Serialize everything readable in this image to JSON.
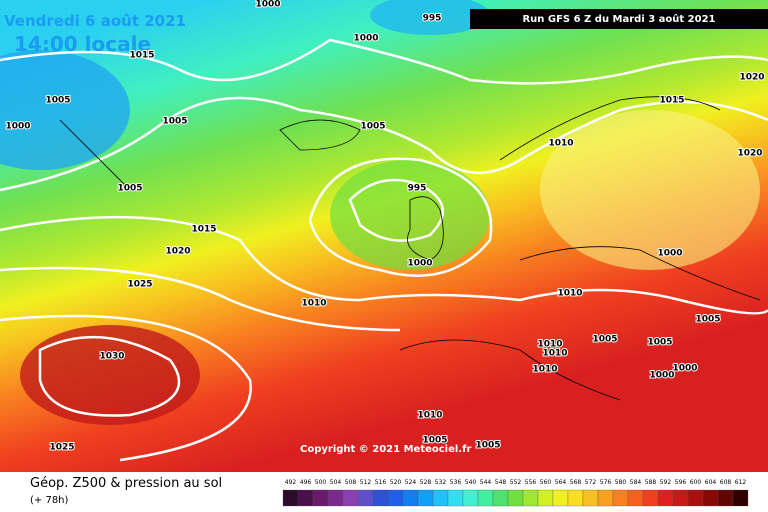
{
  "header": {
    "date": "Vendredi 6 août 2021",
    "time": "14:00 locale",
    "run": "Run GFS 6 Z du Mardi 3 août 2021"
  },
  "isobar_labels": [
    "1000",
    "995",
    "1000",
    "1015",
    "1005",
    "1000",
    "1005",
    "1005",
    "1010",
    "1015",
    "1020",
    "1020",
    "1005",
    "995",
    "1015",
    "1020",
    "1000",
    "1000",
    "1025",
    "1010",
    "1010",
    "1005",
    "1030",
    "1010",
    "1010",
    "1005",
    "1005",
    "1000",
    "1000",
    "1010",
    "1010",
    "1005",
    "1005",
    "1025"
  ],
  "copyright": "Copyright © 2021 Meteociel.fr",
  "footer": {
    "title": "Géop. Z500 & pression au sol",
    "lead": "(+ 78h)"
  },
  "colorbar": {
    "values": [
      492,
      496,
      500,
      504,
      508,
      512,
      516,
      520,
      524,
      528,
      532,
      536,
      540,
      544,
      548,
      552,
      556,
      560,
      564,
      568,
      572,
      576,
      580,
      584,
      588,
      592,
      596,
      600,
      604,
      608,
      612
    ],
    "colors": [
      "#2b0a2b",
      "#4b0f4b",
      "#6a1a6a",
      "#7a2a8a",
      "#8a40b0",
      "#6050c8",
      "#3050d8",
      "#2060e8",
      "#1080f0",
      "#10a0f8",
      "#20c0f8",
      "#30e0f0",
      "#40f0d0",
      "#40f0a0",
      "#50e070",
      "#70e040",
      "#a0e830",
      "#d0f020",
      "#f0f020",
      "#f8e020",
      "#f8c020",
      "#f8a020",
      "#f88020",
      "#f86020",
      "#f04020",
      "#e02020",
      "#c81818",
      "#a81010",
      "#880808",
      "#600404",
      "#300000"
    ]
  }
}
